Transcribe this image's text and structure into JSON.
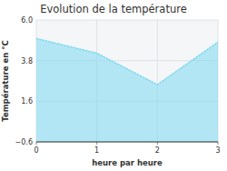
{
  "chart_data": {
    "type": "area",
    "title": "Evolution de la température",
    "xlabel": "heure par heure",
    "ylabel": "Température en °C",
    "x": [
      0,
      1,
      2,
      3
    ],
    "values": [
      5.0,
      4.2,
      2.5,
      4.8
    ],
    "xlim": [
      0,
      3
    ],
    "ylim": [
      -0.6,
      6.0
    ],
    "xticks": [
      0,
      1,
      2,
      3
    ],
    "yticks": [
      {
        "value": -0.6,
        "label": "−0.6"
      },
      1.6,
      3.8,
      {
        "value": 6.0,
        "label": "6.0"
      }
    ],
    "color": "#7dd8f0",
    "line_style": "dotted",
    "grid": true
  }
}
